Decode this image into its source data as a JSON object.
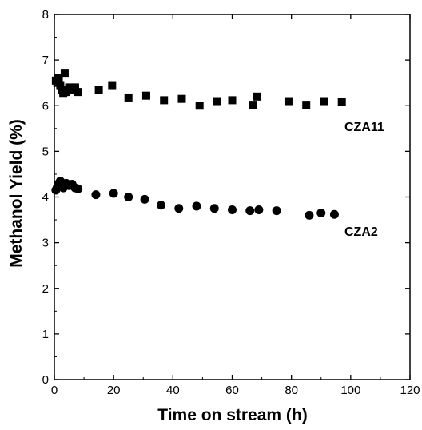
{
  "chart_data": {
    "type": "scatter",
    "title": "",
    "xlabel": "Time on stream (h)",
    "ylabel": "Methanol Yield (%)",
    "xlim": [
      0,
      120
    ],
    "ylim": [
      0,
      8
    ],
    "x_ticks": [
      0,
      20,
      40,
      60,
      80,
      100,
      120
    ],
    "y_ticks": [
      0,
      1,
      2,
      3,
      4,
      5,
      6,
      7,
      8
    ],
    "grid": false,
    "legend": "none",
    "series": [
      {
        "name": "CZA11",
        "marker": "square",
        "color": "#000000",
        "x": [
          0.5,
          1,
          1.5,
          2,
          2.5,
          3,
          3.5,
          4,
          5,
          6,
          7,
          8,
          15,
          19.5,
          25,
          31,
          37,
          43,
          49,
          55,
          60,
          67,
          68.5,
          79,
          85,
          91,
          97
        ],
        "y": [
          6.55,
          6.5,
          6.6,
          6.45,
          6.35,
          6.28,
          6.72,
          6.3,
          6.4,
          6.35,
          6.4,
          6.3,
          6.35,
          6.45,
          6.18,
          6.22,
          6.12,
          6.15,
          6.0,
          6.1,
          6.12,
          6.02,
          6.2,
          6.1,
          6.02,
          6.1,
          6.08
        ]
      },
      {
        "name": "CZA2",
        "marker": "circle",
        "color": "#000000",
        "x": [
          0.5,
          1,
          1.5,
          2,
          3,
          4,
          5,
          6,
          7,
          8,
          14,
          20,
          25,
          30.5,
          36,
          42,
          48,
          54,
          60,
          66,
          69,
          75,
          86,
          90,
          94.5
        ],
        "y": [
          4.15,
          4.22,
          4.3,
          4.35,
          4.2,
          4.3,
          4.25,
          4.28,
          4.2,
          4.18,
          4.05,
          4.08,
          4.0,
          3.95,
          3.82,
          3.75,
          3.8,
          3.75,
          3.72,
          3.7,
          3.72,
          3.7,
          3.6,
          3.65,
          3.62
        ]
      }
    ]
  },
  "annotations": [
    {
      "text": "CZA11",
      "series": "CZA11"
    },
    {
      "text": "CZA2",
      "series": "CZA2"
    }
  ]
}
